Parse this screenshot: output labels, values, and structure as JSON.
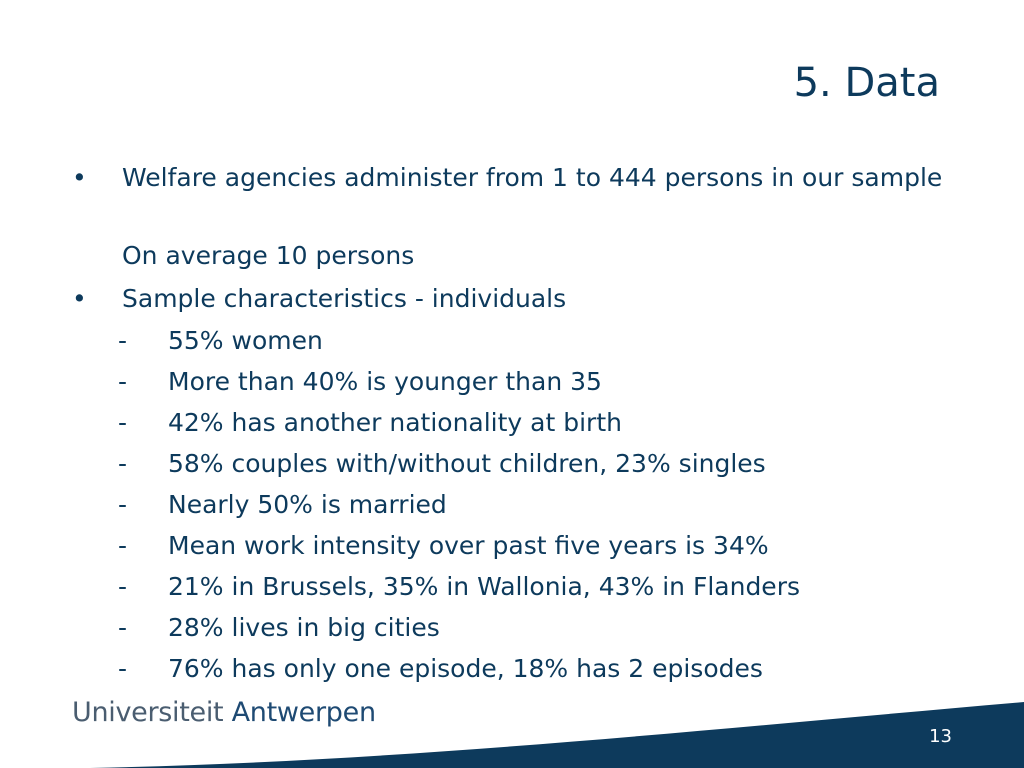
{
  "slide": {
    "title": "5. Data",
    "page_number": "13"
  },
  "bullets": [
    {
      "marker": "•",
      "text": "Welfare agencies administer from 1 to 444 persons in our sample",
      "continuation": "On average 10 persons"
    },
    {
      "marker": "•",
      "text": "Sample characteristics - individuals",
      "sub_items": [
        "55% women",
        "More than 40% is younger than 35",
        "42% has another nationality at birth",
        "58% couples with/without children, 23% singles",
        "Nearly 50% is married",
        "Mean work intensity over past five years is 34%",
        "21% in Brussels, 35% in Wallonia, 43% in Flanders",
        "28% lives in big cities",
        "76% has only one episode, 18% has 2 episodes"
      ]
    }
  ],
  "sub_marker": "-",
  "footer": {
    "logo_part1": "Universiteit",
    "logo_part2": "Antwerpen"
  },
  "colors": {
    "text": "#0d3a5c",
    "wave": "#0d3a5c",
    "background": "#ffffff"
  }
}
